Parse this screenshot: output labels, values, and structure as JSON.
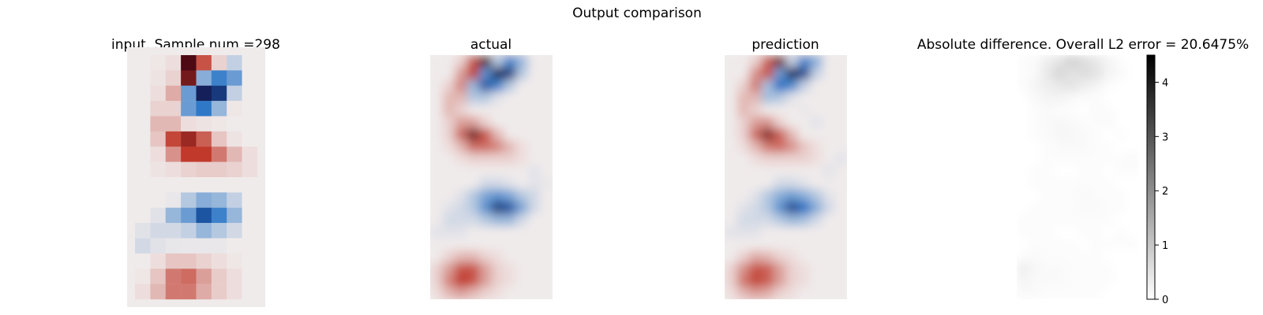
{
  "figure": {
    "suptitle": "Output comparison"
  },
  "colors": {
    "background": "#ffffff",
    "diverging_neg_strong": "#15205a",
    "diverging_neg": "#1f6fc4",
    "diverging_neutral": "#f0ebeb",
    "diverging_pos": "#c0392b",
    "diverging_pos_strong": "#4d0a14",
    "gray_low": "#ffffff",
    "gray_high": "#000000"
  },
  "chart_data": [
    {
      "type": "heatmap",
      "title": "input. Sample num =298",
      "colormap": "diverging",
      "rows": 16,
      "cols": 8,
      "values": [
        [
          0.0,
          0.02,
          0.05,
          1.0,
          0.6,
          0.1,
          -0.15,
          0.0
        ],
        [
          0.0,
          0.03,
          0.1,
          0.9,
          -0.35,
          -0.6,
          -0.45,
          0.0
        ],
        [
          0.0,
          0.05,
          0.25,
          -0.45,
          -1.0,
          -0.9,
          -0.15,
          0.0
        ],
        [
          0.0,
          0.1,
          0.1,
          -0.45,
          -0.65,
          -0.3,
          0.02,
          0.0
        ],
        [
          0.0,
          0.2,
          0.2,
          0.05,
          0.03,
          0.02,
          0.0,
          0.0
        ],
        [
          0.0,
          0.15,
          0.65,
          0.8,
          0.55,
          0.15,
          0.03,
          0.0
        ],
        [
          0.0,
          0.05,
          0.35,
          0.7,
          0.7,
          0.45,
          0.2,
          0.05
        ],
        [
          0.0,
          0.03,
          0.05,
          0.1,
          0.12,
          0.12,
          0.1,
          0.05
        ],
        [
          0.0,
          0.0,
          0.0,
          0.0,
          0.0,
          0.0,
          0.0,
          0.0
        ],
        [
          0.0,
          0.0,
          -0.02,
          -0.2,
          -0.35,
          -0.3,
          -0.15,
          0.0
        ],
        [
          0.0,
          -0.05,
          -0.3,
          -0.45,
          -0.8,
          -0.6,
          -0.3,
          0.0
        ],
        [
          -0.05,
          -0.1,
          -0.1,
          -0.15,
          -0.3,
          -0.2,
          -0.1,
          0.0
        ],
        [
          -0.1,
          -0.05,
          -0.03,
          -0.02,
          -0.02,
          -0.02,
          0.0,
          0.0
        ],
        [
          0.0,
          0.05,
          0.15,
          0.15,
          0.1,
          0.05,
          0.02,
          0.0
        ],
        [
          0.02,
          0.15,
          0.45,
          0.5,
          0.3,
          0.12,
          0.05,
          0.0
        ],
        [
          0.05,
          0.2,
          0.45,
          0.45,
          0.25,
          0.12,
          0.05,
          0.0
        ]
      ]
    },
    {
      "type": "heatmap",
      "title": "actual",
      "colormap": "diverging",
      "rows": 20,
      "cols": 10,
      "values": [
        [
          0.0,
          0.0,
          0.1,
          0.6,
          1.0,
          -0.2,
          -0.6,
          -0.3,
          0.0,
          0.0
        ],
        [
          0.0,
          0.0,
          0.3,
          0.7,
          -0.5,
          -1.0,
          -0.9,
          -0.2,
          0.0,
          0.0
        ],
        [
          0.0,
          0.1,
          0.4,
          -0.3,
          -0.8,
          -0.6,
          -0.2,
          0.0,
          0.0,
          0.0
        ],
        [
          0.0,
          0.2,
          0.2,
          -0.2,
          -0.2,
          -0.05,
          0.0,
          0.0,
          0.0,
          0.0
        ],
        [
          0.0,
          0.2,
          0.1,
          0.0,
          0.0,
          0.0,
          0.0,
          0.0,
          0.0,
          0.0
        ],
        [
          0.0,
          0.1,
          0.3,
          0.3,
          0.1,
          0.0,
          0.0,
          0.0,
          0.0,
          0.0
        ],
        [
          0.0,
          0.1,
          0.5,
          0.9,
          0.6,
          0.2,
          0.0,
          0.0,
          0.0,
          0.0
        ],
        [
          0.0,
          0.05,
          0.2,
          0.5,
          0.5,
          0.4,
          0.2,
          0.05,
          0.0,
          0.0
        ],
        [
          0.0,
          0.0,
          0.05,
          0.1,
          0.1,
          0.1,
          0.1,
          0.05,
          0.0,
          0.0
        ],
        [
          0.0,
          0.0,
          0.0,
          0.0,
          0.0,
          0.0,
          0.0,
          0.0,
          -0.05,
          0.0
        ],
        [
          0.0,
          0.0,
          0.0,
          0.0,
          -0.1,
          -0.1,
          -0.05,
          0.0,
          -0.05,
          -0.02
        ],
        [
          0.0,
          0.0,
          -0.05,
          -0.2,
          -0.4,
          -0.5,
          -0.4,
          -0.2,
          -0.1,
          0.0
        ],
        [
          0.0,
          -0.05,
          -0.1,
          -0.2,
          -0.5,
          -0.9,
          -0.8,
          -0.4,
          -0.1,
          0.0
        ],
        [
          0.0,
          -0.1,
          -0.1,
          -0.1,
          -0.2,
          -0.3,
          -0.3,
          -0.1,
          0.0,
          0.0
        ],
        [
          -0.05,
          -0.05,
          -0.05,
          0.0,
          0.0,
          0.0,
          0.0,
          0.0,
          0.0,
          0.0
        ],
        [
          0.0,
          0.0,
          0.0,
          0.0,
          0.0,
          0.0,
          0.0,
          0.0,
          0.0,
          0.0
        ],
        [
          0.0,
          0.1,
          0.2,
          0.2,
          0.1,
          0.05,
          0.0,
          0.0,
          0.0,
          0.0
        ],
        [
          0.1,
          0.3,
          0.6,
          0.6,
          0.3,
          0.1,
          0.05,
          0.0,
          0.0,
          0.0
        ],
        [
          0.1,
          0.4,
          0.7,
          0.6,
          0.3,
          0.1,
          0.05,
          0.0,
          0.0,
          0.0
        ],
        [
          0.05,
          0.2,
          0.3,
          0.2,
          0.1,
          0.05,
          0.0,
          0.0,
          0.0,
          0.0
        ]
      ]
    },
    {
      "type": "heatmap",
      "title": "prediction",
      "colormap": "diverging",
      "rows": 20,
      "cols": 10,
      "values": [
        [
          0.0,
          0.0,
          0.1,
          0.55,
          0.9,
          -0.15,
          -0.6,
          -0.35,
          0.0,
          0.0
        ],
        [
          0.0,
          0.0,
          0.35,
          0.6,
          -0.45,
          -1.0,
          -0.85,
          -0.15,
          0.0,
          0.0
        ],
        [
          0.0,
          0.1,
          0.45,
          -0.25,
          -0.7,
          -0.55,
          -0.15,
          0.0,
          0.0,
          0.0
        ],
        [
          0.0,
          0.2,
          0.2,
          -0.25,
          -0.2,
          -0.05,
          0.0,
          0.0,
          0.0,
          0.0
        ],
        [
          0.0,
          0.2,
          0.1,
          0.0,
          0.0,
          0.0,
          -0.02,
          0.0,
          0.0,
          0.0
        ],
        [
          0.0,
          0.1,
          0.3,
          0.35,
          0.1,
          0.0,
          0.0,
          -0.05,
          0.0,
          0.0
        ],
        [
          0.0,
          0.1,
          0.5,
          0.85,
          0.55,
          0.2,
          0.0,
          0.0,
          0.0,
          0.0
        ],
        [
          0.0,
          0.05,
          0.2,
          0.45,
          0.5,
          0.35,
          0.15,
          0.05,
          0.0,
          0.0
        ],
        [
          0.0,
          0.0,
          0.05,
          0.1,
          0.1,
          0.1,
          0.1,
          0.05,
          0.0,
          -0.05
        ],
        [
          0.0,
          0.0,
          0.0,
          0.0,
          0.0,
          0.0,
          0.0,
          0.0,
          -0.05,
          0.0
        ],
        [
          0.0,
          0.0,
          0.0,
          0.0,
          -0.1,
          -0.1,
          -0.05,
          0.0,
          0.0,
          0.0
        ],
        [
          0.0,
          0.0,
          -0.05,
          -0.2,
          -0.35,
          -0.45,
          -0.35,
          -0.2,
          -0.05,
          0.0
        ],
        [
          0.0,
          -0.05,
          -0.1,
          -0.2,
          -0.5,
          -0.85,
          -0.7,
          -0.35,
          -0.1,
          0.0
        ],
        [
          0.0,
          -0.1,
          -0.1,
          -0.1,
          -0.2,
          -0.3,
          -0.25,
          -0.1,
          0.0,
          0.0
        ],
        [
          -0.05,
          -0.05,
          -0.05,
          0.0,
          0.0,
          0.0,
          0.0,
          0.0,
          0.0,
          0.0
        ],
        [
          0.0,
          0.0,
          0.0,
          0.0,
          0.0,
          0.0,
          0.0,
          0.0,
          0.0,
          0.0
        ],
        [
          0.0,
          0.1,
          0.25,
          0.2,
          0.1,
          0.05,
          0.0,
          0.0,
          0.0,
          0.0
        ],
        [
          0.1,
          0.35,
          0.6,
          0.55,
          0.3,
          0.1,
          0.05,
          0.0,
          0.0,
          0.0
        ],
        [
          0.1,
          0.45,
          0.65,
          0.55,
          0.3,
          0.1,
          0.05,
          0.0,
          0.0,
          0.0
        ],
        [
          0.05,
          0.2,
          0.3,
          0.25,
          0.1,
          0.05,
          0.0,
          0.0,
          0.0,
          0.0
        ]
      ]
    },
    {
      "type": "heatmap",
      "title": "Absolute difference. Overall L2 error = 20.6475%",
      "colormap": "gray_r",
      "rows": 20,
      "cols": 10,
      "vmin": 0,
      "vmax": 4.5,
      "colorbar_ticks": [
        0,
        1,
        2,
        3,
        4
      ],
      "values": [
        [
          0.05,
          0.1,
          0.3,
          0.5,
          0.8,
          0.6,
          0.4,
          0.2,
          0.05,
          0.0
        ],
        [
          0.05,
          0.1,
          0.4,
          0.7,
          0.5,
          0.6,
          0.5,
          0.2,
          0.1,
          0.0
        ],
        [
          0.05,
          0.2,
          0.3,
          0.4,
          0.5,
          0.3,
          0.2,
          0.05,
          0.0,
          0.0
        ],
        [
          0.0,
          0.1,
          0.2,
          0.2,
          0.1,
          0.05,
          0.05,
          0.0,
          0.0,
          0.0
        ],
        [
          0.0,
          0.05,
          0.1,
          0.05,
          0.05,
          0.0,
          0.1,
          0.05,
          0.0,
          0.0
        ],
        [
          0.0,
          0.05,
          0.1,
          0.15,
          0.1,
          0.05,
          0.05,
          0.1,
          0.0,
          0.0
        ],
        [
          0.0,
          0.05,
          0.1,
          0.15,
          0.15,
          0.1,
          0.05,
          0.0,
          0.05,
          0.0
        ],
        [
          0.0,
          0.0,
          0.05,
          0.1,
          0.1,
          0.1,
          0.05,
          0.05,
          0.0,
          0.0
        ],
        [
          0.0,
          0.0,
          0.05,
          0.05,
          0.05,
          0.05,
          0.05,
          0.05,
          0.05,
          0.1
        ],
        [
          0.0,
          0.05,
          0.05,
          0.0,
          0.0,
          0.05,
          0.05,
          0.0,
          0.05,
          0.05
        ],
        [
          0.0,
          0.05,
          0.05,
          0.05,
          0.05,
          0.05,
          0.05,
          0.05,
          0.0,
          0.0
        ],
        [
          0.0,
          0.0,
          0.05,
          0.05,
          0.05,
          0.1,
          0.05,
          0.05,
          0.05,
          0.0
        ],
        [
          0.0,
          0.05,
          0.05,
          0.05,
          0.05,
          0.1,
          0.1,
          0.05,
          0.05,
          0.0
        ],
        [
          0.05,
          0.05,
          0.05,
          0.05,
          0.05,
          0.05,
          0.05,
          0.05,
          0.0,
          0.0
        ],
        [
          0.05,
          0.05,
          0.05,
          0.0,
          0.0,
          0.05,
          0.05,
          0.0,
          0.05,
          0.0
        ],
        [
          0.0,
          0.05,
          0.05,
          0.05,
          0.05,
          0.0,
          0.05,
          0.05,
          0.05,
          0.05
        ],
        [
          0.05,
          0.1,
          0.05,
          0.05,
          0.05,
          0.05,
          0.05,
          0.0,
          0.0,
          0.0
        ],
        [
          0.3,
          0.15,
          0.1,
          0.1,
          0.05,
          0.05,
          0.05,
          0.05,
          0.0,
          0.0
        ],
        [
          0.2,
          0.1,
          0.1,
          0.1,
          0.05,
          0.05,
          0.05,
          0.05,
          0.0,
          0.0
        ],
        [
          0.1,
          0.1,
          0.05,
          0.05,
          0.05,
          0.05,
          0.05,
          0.0,
          0.0,
          0.0
        ]
      ]
    }
  ]
}
